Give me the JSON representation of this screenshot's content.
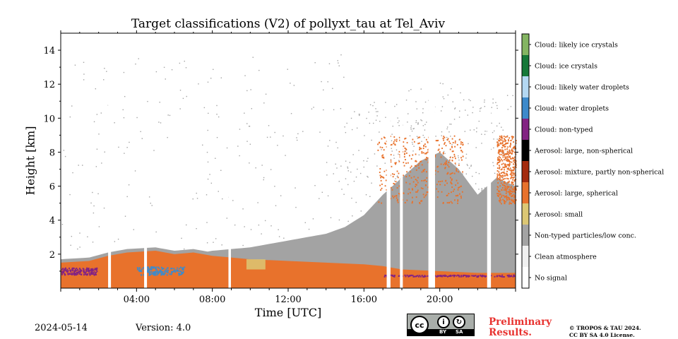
{
  "chart_data": {
    "type": "heatmap",
    "title": "Target classifications (V2) of pollyxt_tau at Tel_Aviv",
    "xlabel": "Time [UTC]",
    "ylabel": "Height [km]",
    "x_range_hours": [
      0,
      24
    ],
    "ylim_km": [
      0,
      15
    ],
    "x_ticks": [
      "04:00",
      "08:00",
      "12:00",
      "16:00",
      "20:00"
    ],
    "x_tick_hours": [
      4,
      8,
      12,
      16,
      20
    ],
    "y_ticks": [
      2,
      4,
      6,
      8,
      10,
      12,
      14
    ],
    "y_tick_labels": [
      "2",
      "4",
      "6",
      "8",
      "10",
      "12",
      "14"
    ],
    "classes": [
      {
        "label": "No signal",
        "color": "#ffffff"
      },
      {
        "label": "Clean atmosphere",
        "color": "#f0f0f0"
      },
      {
        "label": "Non-typed particles/low conc.",
        "color": "#a3a3a3"
      },
      {
        "label": "Aerosol: small",
        "color": "#dcc774"
      },
      {
        "label": "Aerosol: large, spherical",
        "color": "#e8722c"
      },
      {
        "label": "Aerosol: mixture, partly non-spherical",
        "color": "#a42b0e"
      },
      {
        "label": "Aerosol: large, non-spherical",
        "color": "#000000"
      },
      {
        "label": "Cloud: non-typed",
        "color": "#832383"
      },
      {
        "label": "Cloud: water droplets",
        "color": "#3d8acb"
      },
      {
        "label": "Cloud: likely water droplets",
        "color": "#b4d8f2"
      },
      {
        "label": "Cloud: ice crystals",
        "color": "#167838"
      },
      {
        "label": "Cloud: likely ice crystals",
        "color": "#84b562"
      }
    ],
    "aerosol_layer_top_km": [
      [
        0,
        1.5
      ],
      [
        1.5,
        1.6
      ],
      [
        2.5,
        1.9
      ],
      [
        3.5,
        2.1
      ],
      [
        5,
        2.2
      ],
      [
        6,
        2.0
      ],
      [
        7,
        2.1
      ],
      [
        8,
        1.9
      ],
      [
        9,
        1.8
      ],
      [
        10,
        1.7
      ],
      [
        12,
        1.6
      ],
      [
        14,
        1.5
      ],
      [
        16,
        1.4
      ],
      [
        17,
        1.3
      ],
      [
        18,
        1.1
      ],
      [
        20,
        1.0
      ],
      [
        22,
        0.9
      ],
      [
        24,
        0.9
      ]
    ],
    "grey_region_top_km": [
      [
        8,
        2.2
      ],
      [
        10,
        2.4
      ],
      [
        12,
        2.8
      ],
      [
        14,
        3.2
      ],
      [
        15,
        3.6
      ],
      [
        16,
        4.3
      ],
      [
        17,
        5.5
      ],
      [
        18,
        6.5
      ],
      [
        19,
        7.5
      ],
      [
        20,
        8.0
      ],
      [
        21,
        7.0
      ],
      [
        22,
        5.5
      ],
      [
        23,
        6.5
      ],
      [
        24,
        6.0
      ]
    ],
    "orange_high_layer_km": [
      {
        "start_h": 16.7,
        "end_h": 21.2,
        "bottom": 5.0,
        "top": 9.0
      },
      {
        "start_h": 23.0,
        "end_h": 24.0,
        "bottom": 5.0,
        "top": 9.0
      }
    ],
    "cloud_base_layers": [
      {
        "start_h": 0.0,
        "end_h": 1.9,
        "bottom_km": 0.8,
        "top_km": 2.0,
        "class": "Cloud: non-typed"
      },
      {
        "start_h": 4.0,
        "end_h": 6.5,
        "bottom_km": 0.8,
        "top_km": 2.2,
        "class": "Cloud: water droplets"
      },
      {
        "start_h": 17.0,
        "end_h": 24.0,
        "bottom_km": 0.7,
        "top_km": 1.0,
        "class": "Cloud: non-typed"
      }
    ],
    "no_signal_gaps_h": [
      [
        2.5,
        2.65
      ],
      [
        4.4,
        4.55
      ],
      [
        8.85,
        8.98
      ],
      [
        17.2,
        17.4
      ],
      [
        17.9,
        18.05
      ],
      [
        19.4,
        19.75
      ],
      [
        22.5,
        22.7
      ]
    ],
    "small_aerosol_patch": {
      "start_h": 9.8,
      "end_h": 10.8,
      "bottom_km": 1.1,
      "top_km": 1.7
    }
  },
  "footer": {
    "date": "2024-05-14",
    "version": "Version: 4.0",
    "license_badge": {
      "main": "cc",
      "left_label": "BY",
      "right_label": "SA",
      "icons": [
        "cc-icon",
        "person-icon",
        "share-alike-icon"
      ]
    },
    "preliminary_line1": "Preliminary",
    "preliminary_line2": "Results.",
    "copyright_line1": "© TROPOS & TAU 2024.",
    "copyright_line2": "CC BY SA 4.0 License.",
    "preliminary_color": "#e8322f"
  }
}
